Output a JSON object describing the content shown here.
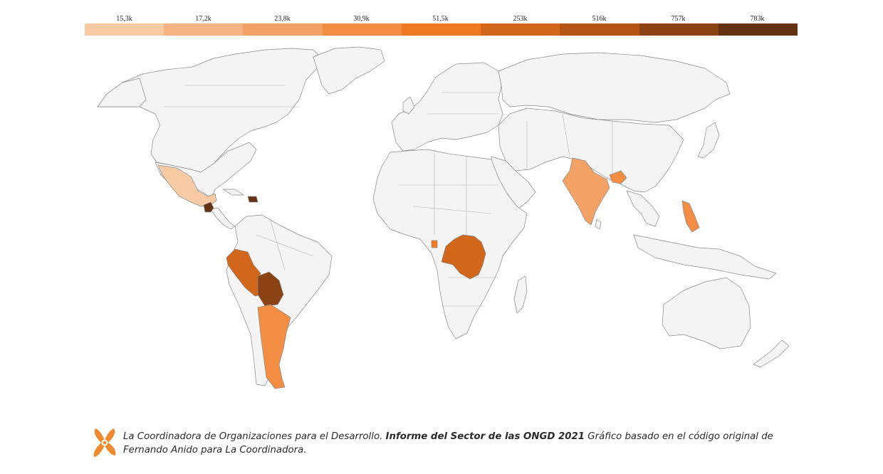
{
  "legend": {
    "labels": [
      "15,3k",
      "17,2k",
      "23,8k",
      "30,9k",
      "51,5k",
      "253k",
      "516k",
      "757k",
      "783k"
    ],
    "colors": [
      "#f9cba5",
      "#f6b283",
      "#f4a166",
      "#f28d43",
      "#ef7a22",
      "#d2661a",
      "#b45516",
      "#8c4313",
      "#633213"
    ]
  },
  "map": {
    "base_color": "#f4f4f4",
    "border_color": "#8a8a8a",
    "highlighted": [
      {
        "name": "Mexico",
        "color": "#f9cba5"
      },
      {
        "name": "Guatemala",
        "color": "#633213"
      },
      {
        "name": "Dominican Republic",
        "color": "#633213"
      },
      {
        "name": "Peru",
        "color": "#d2661a"
      },
      {
        "name": "Bolivia",
        "color": "#8c4313"
      },
      {
        "name": "Argentina",
        "color": "#f28d43"
      },
      {
        "name": "DR Congo",
        "color": "#d2661a"
      },
      {
        "name": "Gabon",
        "color": "#ef7a22"
      },
      {
        "name": "India",
        "color": "#f4a166"
      },
      {
        "name": "Nepal",
        "color": "#f28d43"
      },
      {
        "name": "Philippines",
        "color": "#f28d43"
      }
    ]
  },
  "footer": {
    "credit_plain": "La Coordinadora de Organizaciones para el Desarrollo. ",
    "credit_bold": "Informe del Sector de las ONGD 2021",
    "credit_tail": " Gráfico basado en el código original de Fernando Anido para La Coordinadora.",
    "logo_color": "#ef8a2e"
  }
}
